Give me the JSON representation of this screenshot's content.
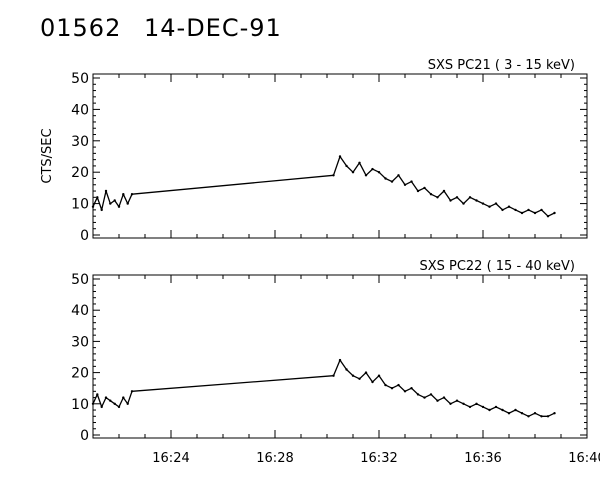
{
  "header": {
    "event_id": "01562",
    "date": "14-DEC-91"
  },
  "chart_data": [
    {
      "type": "line",
      "title": "SXS PC21  (  3 - 15 keV)",
      "ylabel": "CTS/SEC",
      "ylim": [
        0,
        50
      ],
      "yticks": [
        0,
        10,
        20,
        30,
        40,
        50
      ],
      "xlim": [
        "16:21",
        "16:40"
      ],
      "xticks": [
        "16:24",
        "16:28",
        "16:32",
        "16:36",
        "16:40"
      ],
      "tick_labels_shown": false,
      "series": [
        {
          "x": [
            "16:21:00",
            "16:21:10",
            "16:21:20",
            "16:21:30",
            "16:21:40",
            "16:21:50",
            "16:22:00",
            "16:22:10",
            "16:22:20",
            "16:22:30",
            "16:30:15",
            "16:30:30",
            "16:30:45",
            "16:31:00",
            "16:31:15",
            "16:31:30",
            "16:31:45",
            "16:32:00",
            "16:32:15",
            "16:32:30",
            "16:32:45",
            "16:33:00",
            "16:33:15",
            "16:33:30",
            "16:33:45",
            "16:34:00",
            "16:34:15",
            "16:34:30",
            "16:34:45",
            "16:35:00",
            "16:35:15",
            "16:35:30",
            "16:35:45",
            "16:36:00",
            "16:36:15",
            "16:36:30",
            "16:36:45",
            "16:37:00",
            "16:37:15",
            "16:37:30",
            "16:37:45",
            "16:38:00",
            "16:38:15",
            "16:38:30",
            "16:38:45"
          ],
          "y": [
            9,
            12,
            8,
            14,
            10,
            11,
            9,
            13,
            10,
            13,
            19,
            25,
            22,
            20,
            23,
            19,
            21,
            20,
            18,
            17,
            19,
            16,
            17,
            14,
            15,
            13,
            12,
            14,
            11,
            12,
            10,
            12,
            11,
            10,
            9,
            10,
            8,
            9,
            8,
            7,
            8,
            7,
            8,
            6,
            7
          ]
        }
      ]
    },
    {
      "type": "line",
      "title": "SXS PC22  ( 15 - 40 keV)",
      "ylabel": "",
      "ylim": [
        0,
        50
      ],
      "yticks": [
        0,
        10,
        20,
        30,
        40,
        50
      ],
      "xlim": [
        "16:21",
        "16:40"
      ],
      "xticks": [
        "16:24",
        "16:28",
        "16:32",
        "16:36",
        "16:40"
      ],
      "tick_labels_shown": true,
      "series": [
        {
          "x": [
            "16:21:00",
            "16:21:10",
            "16:21:20",
            "16:21:30",
            "16:21:40",
            "16:21:50",
            "16:22:00",
            "16:22:10",
            "16:22:20",
            "16:22:30",
            "16:30:15",
            "16:30:30",
            "16:30:45",
            "16:31:00",
            "16:31:15",
            "16:31:30",
            "16:31:45",
            "16:32:00",
            "16:32:15",
            "16:32:30",
            "16:32:45",
            "16:33:00",
            "16:33:15",
            "16:33:30",
            "16:33:45",
            "16:34:00",
            "16:34:15",
            "16:34:30",
            "16:34:45",
            "16:35:00",
            "16:35:15",
            "16:35:30",
            "16:35:45",
            "16:36:00",
            "16:36:15",
            "16:36:30",
            "16:36:45",
            "16:37:00",
            "16:37:15",
            "16:37:30",
            "16:37:45",
            "16:38:00",
            "16:38:15",
            "16:38:30",
            "16:38:45"
          ],
          "y": [
            10,
            13,
            9,
            12,
            11,
            10,
            9,
            12,
            10,
            14,
            19,
            24,
            21,
            19,
            18,
            20,
            17,
            19,
            16,
            15,
            16,
            14,
            15,
            13,
            12,
            13,
            11,
            12,
            10,
            11,
            10,
            9,
            10,
            9,
            8,
            9,
            8,
            7,
            8,
            7,
            6,
            7,
            6,
            6,
            7
          ]
        }
      ]
    }
  ]
}
